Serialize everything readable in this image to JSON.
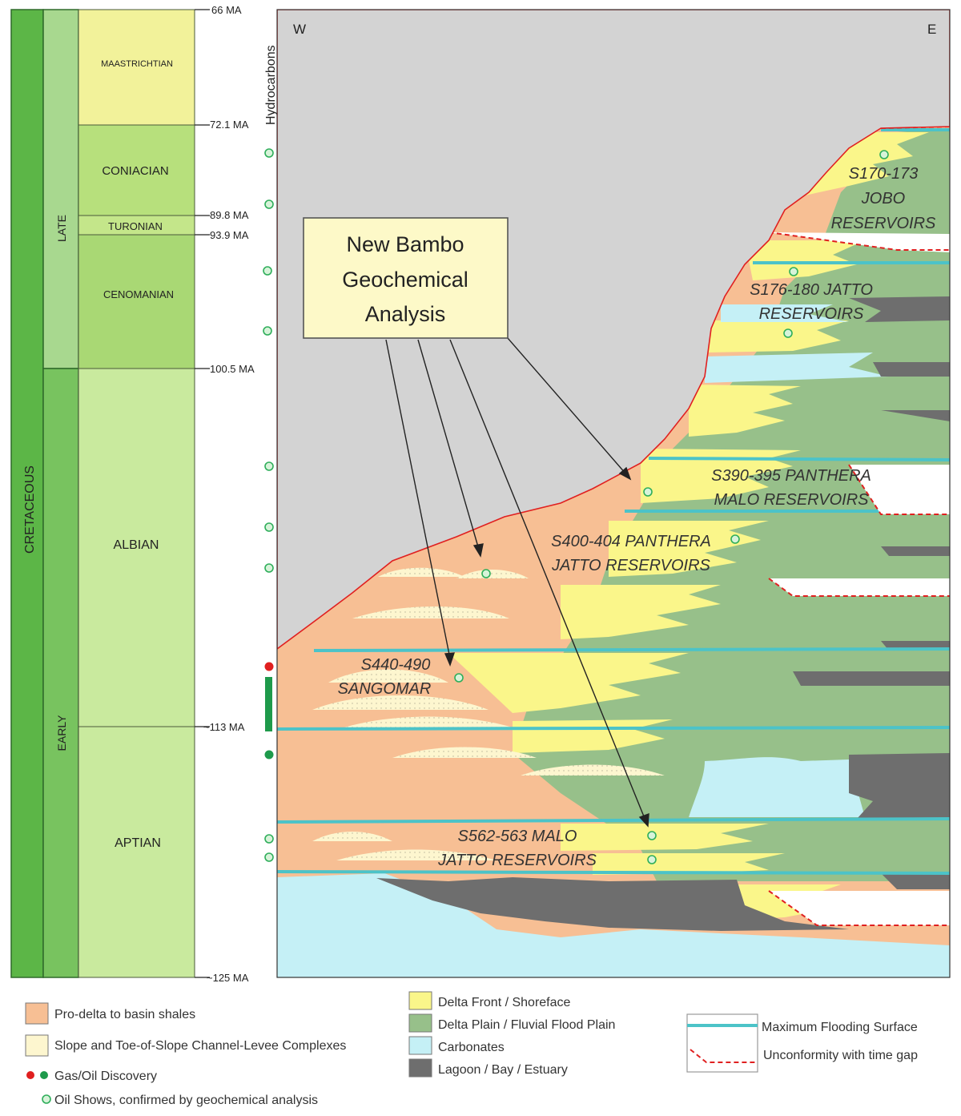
{
  "column": {
    "system": "CRETACEOUS",
    "series": [
      "LATE",
      "EARLY"
    ],
    "stages": [
      "MAASTRICHTIAN",
      "CONIACIAN",
      "TURONIAN",
      "CENOMANIAN",
      "ALBIAN",
      "APTIAN"
    ],
    "ages": [
      "66 MA",
      "72.1 MA",
      "89.8 MA",
      "93.9 MA",
      "100.5 MA",
      "~113 MA",
      "~125 MA"
    ],
    "hydrocarbons_label": "Hydrocarbons"
  },
  "section": {
    "west": "W",
    "east": "E",
    "callout": [
      "New Bambo",
      "Geochemical",
      "Analysis"
    ],
    "reservoirs": [
      [
        "S170-173",
        "JOBO",
        "RESERVOIRS"
      ],
      [
        "S176-180 JATTO",
        "RESERVOIRS"
      ],
      [
        "S390-395 PANTHERA",
        "MALO RESERVOIRS"
      ],
      [
        "S400-404 PANTHERA",
        "JATTO RESERVOIRS"
      ],
      [
        "S440-490",
        "SANGOMAR"
      ],
      [
        "S562-563 MALO",
        "JATTO RESERVOIRS"
      ]
    ]
  },
  "legend": {
    "shales": "Pro-delta to basin shales",
    "slope": "Slope and Toe-of-Slope Channel-Levee Complexes",
    "discovery": "Gas/Oil Discovery",
    "shows": "Oil Shows, confirmed by geochemical analysis",
    "delta_front": "Delta Front / Shoreface",
    "delta_plain": "Delta Plain / Fluvial Flood Plain",
    "carbonates": "Carbonates",
    "lagoon": "Lagoon / Bay / Estuary",
    "mfs": "Maximum Flooding Surface",
    "unconformity": "Unconformity with time gap"
  },
  "colors": {
    "shale": "#f7bf94",
    "slope": "#fdf6cf",
    "delta_front": "#faf68a",
    "delta_plain": "#97c08a",
    "carbonate": "#c5f0f6",
    "lagoon": "#6e6e6e",
    "mfs": "#4cc3c8",
    "unconformity": "#e02020",
    "gas": "#e01f1f",
    "oil": "#1e9a4b",
    "system_green": "#5cb647",
    "sky": "#d3d3d3"
  }
}
